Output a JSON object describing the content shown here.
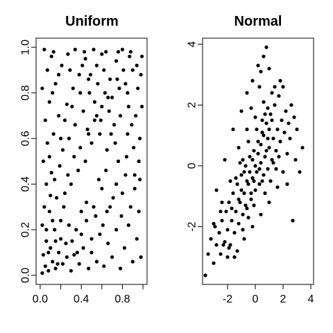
{
  "chart_data": [
    {
      "type": "scatter",
      "title": "Uniform",
      "xlabel": "",
      "ylabel": "",
      "xlim": [
        -0.04,
        1.04
      ],
      "ylim": [
        -0.04,
        1.04
      ],
      "x_ticks": [
        0.0,
        0.2,
        0.4,
        0.6,
        0.8,
        1.0
      ],
      "x_tick_labels": [
        "0.0",
        "",
        "0.4",
        "",
        "0.8",
        ""
      ],
      "y_ticks": [
        0.0,
        0.2,
        0.4,
        0.6,
        0.8,
        1.0
      ],
      "y_tick_labels": [
        "0.0",
        "0.2",
        "0.4",
        "0.6",
        "0.8",
        "1.0"
      ],
      "grid": false,
      "marker_color": "#000000",
      "points": [
        [
          0.02,
          0.01
        ],
        [
          0.05,
          0.04
        ],
        [
          0.03,
          0.09
        ],
        [
          0.08,
          0.02
        ],
        [
          0.12,
          0.06
        ],
        [
          0.06,
          0.15
        ],
        [
          0.1,
          0.12
        ],
        [
          0.15,
          0.03
        ],
        [
          0.02,
          0.22
        ],
        [
          0.18,
          0.1
        ],
        [
          0.22,
          0.05
        ],
        [
          0.14,
          0.2
        ],
        [
          0.04,
          0.3
        ],
        [
          0.25,
          0.14
        ],
        [
          0.3,
          0.02
        ],
        [
          0.09,
          0.28
        ],
        [
          0.2,
          0.24
        ],
        [
          0.33,
          0.09
        ],
        [
          0.06,
          0.4
        ],
        [
          0.28,
          0.22
        ],
        [
          0.38,
          0.05
        ],
        [
          0.16,
          0.34
        ],
        [
          0.42,
          0.12
        ],
        [
          0.11,
          0.45
        ],
        [
          0.35,
          0.2
        ],
        [
          0.47,
          0.03
        ],
        [
          0.24,
          0.36
        ],
        [
          0.03,
          0.5
        ],
        [
          0.5,
          0.1
        ],
        [
          0.4,
          0.28
        ],
        [
          0.19,
          0.48
        ],
        [
          0.55,
          0.06
        ],
        [
          0.3,
          0.4
        ],
        [
          0.07,
          0.58
        ],
        [
          0.58,
          0.18
        ],
        [
          0.45,
          0.32
        ],
        [
          0.22,
          0.55
        ],
        [
          0.62,
          0.04
        ],
        [
          0.37,
          0.46
        ],
        [
          0.13,
          0.62
        ],
        [
          0.66,
          0.14
        ],
        [
          0.52,
          0.3
        ],
        [
          0.28,
          0.6
        ],
        [
          0.7,
          0.08
        ],
        [
          0.05,
          0.68
        ],
        [
          0.44,
          0.5
        ],
        [
          0.74,
          0.2
        ],
        [
          0.6,
          0.38
        ],
        [
          0.18,
          0.7
        ],
        [
          0.78,
          0.03
        ],
        [
          0.34,
          0.66
        ],
        [
          0.82,
          0.12
        ],
        [
          0.68,
          0.3
        ],
        [
          0.09,
          0.76
        ],
        [
          0.5,
          0.58
        ],
        [
          0.86,
          0.22
        ],
        [
          0.26,
          0.75
        ],
        [
          0.9,
          0.06
        ],
        [
          0.74,
          0.4
        ],
        [
          0.02,
          0.82
        ],
        [
          0.42,
          0.72
        ],
        [
          0.94,
          0.16
        ],
        [
          0.58,
          0.62
        ],
        [
          0.15,
          0.84
        ],
        [
          0.98,
          0.08
        ],
        [
          0.8,
          0.36
        ],
        [
          0.32,
          0.82
        ],
        [
          0.65,
          0.55
        ],
        [
          0.07,
          0.9
        ],
        [
          0.88,
          0.3
        ],
        [
          0.48,
          0.8
        ],
        [
          0.21,
          0.92
        ],
        [
          0.72,
          0.66
        ],
        [
          0.96,
          0.28
        ],
        [
          0.38,
          0.88
        ],
        [
          0.11,
          0.96
        ],
        [
          0.56,
          0.84
        ],
        [
          0.84,
          0.52
        ],
        [
          0.27,
          0.97
        ],
        [
          0.62,
          0.9
        ],
        [
          0.92,
          0.44
        ],
        [
          0.44,
          0.95
        ],
        [
          0.78,
          0.7
        ],
        [
          0.04,
          0.99
        ],
        [
          0.68,
          0.86
        ],
        [
          0.97,
          0.6
        ],
        [
          0.52,
          0.99
        ],
        [
          0.86,
          0.74
        ],
        [
          0.34,
          0.99
        ],
        [
          0.74,
          0.94
        ],
        [
          0.95,
          0.82
        ],
        [
          0.6,
          0.97
        ],
        [
          0.9,
          0.9
        ],
        [
          0.8,
          0.99
        ],
        [
          0.99,
          0.96
        ],
        [
          0.7,
          0.78
        ],
        [
          0.55,
          0.7
        ],
        [
          0.85,
          0.62
        ],
        [
          0.46,
          0.64
        ],
        [
          0.76,
          0.5
        ],
        [
          0.64,
          0.46
        ],
        [
          0.93,
          0.7
        ],
        [
          0.57,
          0.42
        ],
        [
          0.83,
          0.84
        ],
        [
          0.67,
          0.72
        ],
        [
          0.98,
          0.88
        ],
        [
          0.49,
          0.88
        ],
        [
          0.73,
          0.58
        ],
        [
          0.89,
          0.66
        ],
        [
          0.63,
          0.8
        ],
        [
          0.96,
          0.5
        ],
        [
          0.53,
          0.76
        ],
        [
          0.81,
          0.9
        ],
        [
          0.69,
          0.62
        ],
        [
          0.87,
          0.96
        ],
        [
          0.59,
          0.68
        ],
        [
          0.77,
          0.82
        ],
        [
          0.91,
          0.56
        ],
        [
          0.41,
          0.92
        ],
        [
          0.99,
          0.74
        ],
        [
          0.15,
          0.15
        ],
        [
          0.08,
          0.1
        ],
        [
          0.2,
          0.16
        ],
        [
          0.12,
          0.24
        ],
        [
          0.26,
          0.08
        ],
        [
          0.17,
          0.05
        ],
        [
          0.06,
          0.2
        ],
        [
          0.23,
          0.3
        ],
        [
          0.31,
          0.15
        ],
        [
          0.1,
          0.35
        ],
        [
          0.36,
          0.1
        ],
        [
          0.14,
          0.42
        ],
        [
          0.4,
          0.18
        ],
        [
          0.27,
          0.44
        ],
        [
          0.45,
          0.24
        ],
        [
          0.09,
          0.52
        ],
        [
          0.33,
          0.52
        ],
        [
          0.5,
          0.16
        ],
        [
          0.2,
          0.6
        ],
        [
          0.54,
          0.26
        ],
        [
          0.39,
          0.56
        ],
        [
          0.61,
          0.22
        ],
        [
          0.24,
          0.68
        ],
        [
          0.47,
          0.62
        ],
        [
          0.65,
          0.28
        ],
        [
          0.31,
          0.74
        ],
        [
          0.71,
          0.34
        ],
        [
          0.53,
          0.68
        ],
        [
          0.12,
          0.8
        ],
        [
          0.79,
          0.26
        ],
        [
          0.39,
          0.8
        ],
        [
          0.6,
          0.74
        ],
        [
          0.83,
          0.44
        ],
        [
          0.18,
          0.88
        ],
        [
          0.66,
          0.78
        ],
        [
          0.47,
          0.86
        ],
        [
          0.92,
          0.38
        ],
        [
          0.29,
          0.9
        ],
        [
          0.75,
          0.86
        ],
        [
          0.55,
          0.92
        ],
        [
          0.97,
          0.42
        ],
        [
          0.13,
          0.98
        ],
        [
          0.85,
          0.8
        ],
        [
          0.64,
          0.98
        ],
        [
          0.43,
          0.98
        ],
        [
          0.94,
          0.92
        ],
        [
          0.76,
          0.98
        ],
        [
          0.88,
          0.98
        ]
      ]
    },
    {
      "type": "scatter",
      "title": "Normal",
      "xlabel": "",
      "ylabel": "",
      "xlim": [
        -3.8,
        4.2
      ],
      "ylim": [
        -3.9,
        4.2
      ],
      "x_ticks": [
        -2,
        0,
        2,
        4
      ],
      "x_tick_labels": [
        "-2",
        "0",
        "2",
        "4"
      ],
      "y_ticks": [
        -2,
        0,
        2,
        4
      ],
      "y_tick_labels": [
        "-2",
        "0",
        "2",
        "4"
      ],
      "grid": false,
      "marker_color": "#000000",
      "points": [
        [
          -3.6,
          -3.6
        ],
        [
          -3.4,
          -2.9
        ],
        [
          -3.0,
          -3.2
        ],
        [
          -2.8,
          -2.6
        ],
        [
          -3.2,
          -2.4
        ],
        [
          -2.5,
          -2.9
        ],
        [
          -2.6,
          -2.2
        ],
        [
          -2.2,
          -2.5
        ],
        [
          -2.4,
          -1.8
        ],
        [
          -2.0,
          -2.1
        ],
        [
          -1.8,
          -2.6
        ],
        [
          -2.1,
          -1.5
        ],
        [
          -1.7,
          -1.8
        ],
        [
          -1.5,
          -2.2
        ],
        [
          -1.9,
          -1.2
        ],
        [
          -1.4,
          -1.5
        ],
        [
          -1.2,
          -1.9
        ],
        [
          -1.6,
          -0.9
        ],
        [
          -1.1,
          -1.2
        ],
        [
          -0.9,
          -1.6
        ],
        [
          -1.3,
          -0.6
        ],
        [
          -0.8,
          -0.9
        ],
        [
          -0.6,
          -1.4
        ],
        [
          -1.0,
          -0.3
        ],
        [
          -0.5,
          -0.6
        ],
        [
          -0.3,
          -1.1
        ],
        [
          -0.7,
          0.0
        ],
        [
          -0.2,
          -0.4
        ],
        [
          0.0,
          -0.8
        ],
        [
          -0.4,
          0.3
        ],
        [
          0.1,
          -0.2
        ],
        [
          0.3,
          -0.6
        ],
        [
          -0.1,
          0.5
        ],
        [
          0.4,
          0.1
        ],
        [
          0.6,
          -0.3
        ],
        [
          0.2,
          0.8
        ],
        [
          0.7,
          0.3
        ],
        [
          0.9,
          -0.1
        ],
        [
          0.5,
          1.1
        ],
        [
          1.0,
          0.6
        ],
        [
          1.2,
          0.2
        ],
        [
          0.8,
          1.4
        ],
        [
          1.3,
          0.9
        ],
        [
          1.5,
          0.5
        ],
        [
          1.1,
          1.7
        ],
        [
          1.6,
          1.2
        ],
        [
          1.8,
          0.8
        ],
        [
          1.4,
          2.0
        ],
        [
          1.9,
          1.5
        ],
        [
          2.1,
          1.1
        ],
        [
          1.7,
          2.3
        ],
        [
          2.2,
          1.8
        ],
        [
          2.4,
          1.4
        ],
        [
          2.0,
          2.6
        ],
        [
          2.6,
          2.0
        ],
        [
          2.8,
          1.6
        ],
        [
          3.0,
          1.2
        ],
        [
          3.4,
          0.6
        ],
        [
          2.7,
          -1.8
        ],
        [
          2.3,
          -0.6
        ],
        [
          -2.8,
          -0.8
        ],
        [
          -2.2,
          0.2
        ],
        [
          -1.6,
          1.2
        ],
        [
          -1.0,
          1.8
        ],
        [
          -0.6,
          2.4
        ],
        [
          -0.2,
          2.8
        ],
        [
          0.2,
          3.3
        ],
        [
          0.6,
          3.6
        ],
        [
          0.8,
          3.9
        ],
        [
          0.4,
          3.1
        ],
        [
          1.0,
          3.2
        ],
        [
          1.4,
          2.6
        ],
        [
          -1.5,
          -3.0
        ],
        [
          -0.8,
          -2.4
        ],
        [
          -0.2,
          -2.0
        ],
        [
          0.4,
          -1.6
        ],
        [
          1.0,
          -1.2
        ],
        [
          1.6,
          -0.7
        ],
        [
          2.0,
          -0.2
        ],
        [
          -3.0,
          -1.9
        ],
        [
          -2.4,
          -1.2
        ],
        [
          -1.8,
          -0.5
        ],
        [
          -1.2,
          0.6
        ],
        [
          -0.6,
          1.2
        ],
        [
          0.0,
          1.6
        ],
        [
          0.6,
          2.1
        ],
        [
          1.2,
          2.4
        ],
        [
          0.3,
          2.6
        ],
        [
          -0.3,
          1.9
        ],
        [
          0.9,
          1.9
        ],
        [
          1.5,
          -0.1
        ],
        [
          0.7,
          -0.9
        ],
        [
          -0.1,
          -1.3
        ],
        [
          -0.9,
          -2.1
        ],
        [
          -1.3,
          -2.8
        ],
        [
          -2.0,
          -3.0
        ],
        [
          0.0,
          0.0
        ],
        [
          0.2,
          0.4
        ],
        [
          -0.2,
          0.2
        ],
        [
          0.4,
          0.7
        ],
        [
          -0.4,
          -0.2
        ],
        [
          0.6,
          1.0
        ],
        [
          -0.6,
          -0.5
        ],
        [
          0.8,
          0.5
        ],
        [
          -0.8,
          -0.2
        ],
        [
          1.0,
          1.2
        ],
        [
          -1.0,
          -0.8
        ],
        [
          0.3,
          -0.1
        ],
        [
          -0.3,
          -0.9
        ],
        [
          0.5,
          1.5
        ],
        [
          -0.5,
          0.8
        ],
        [
          1.2,
          1.5
        ],
        [
          -1.2,
          -1.1
        ],
        [
          0.1,
          1.2
        ],
        [
          -0.1,
          -0.5
        ],
        [
          0.9,
          0.9
        ],
        [
          -0.9,
          0.2
        ],
        [
          1.3,
          0.1
        ],
        [
          -1.4,
          -0.4
        ],
        [
          0.7,
          1.7
        ],
        [
          -0.7,
          -1.3
        ],
        [
          1.7,
          0.3
        ],
        [
          -1.7,
          -1.4
        ],
        [
          0.5,
          -0.5
        ],
        [
          -0.5,
          -1.7
        ],
        [
          1.1,
          -0.5
        ],
        [
          -1.1,
          0.1
        ],
        [
          2.5,
          0.9
        ],
        [
          -2.5,
          -1.5
        ],
        [
          2.9,
          0.2
        ],
        [
          -2.9,
          -2.0
        ],
        [
          3.2,
          -0.2
        ],
        [
          1.8,
          2.8
        ],
        [
          -1.9,
          -2.7
        ],
        [
          2.3,
          0.4
        ],
        [
          -2.3,
          -2.6
        ]
      ]
    }
  ]
}
